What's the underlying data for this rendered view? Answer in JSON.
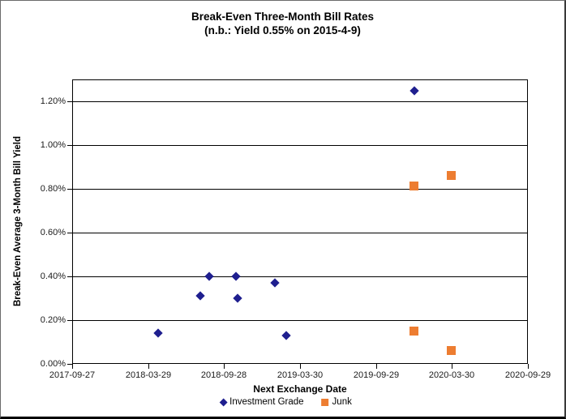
{
  "title": {
    "line1": "Break-Even Three-Month Bill Rates",
    "line2": "(n.b.: Yield 0.55% on 2015-4-9)"
  },
  "legend": {
    "items": [
      {
        "label": "Investment Grade",
        "marker": "diamond",
        "color": "#1F1F8F"
      },
      {
        "label": "Junk",
        "marker": "square",
        "color": "#ED7D31"
      }
    ]
  },
  "colors": {
    "investment_grade": "#1F1F8F",
    "junk": "#ED7D31",
    "gridline": "#000000",
    "text": "#000000"
  },
  "chart_data": {
    "type": "scatter",
    "title": "Break-Even Three-Month Bill Rates",
    "subtitle": "(n.b.: Yield 0.55% on 2015-4-9)",
    "xlabel": "Next Exchange Date",
    "ylabel": "Break-Even Average 3-Month Bill Yield",
    "x_tick_labels": [
      "2017-09-27",
      "2018-03-29",
      "2018-09-28",
      "2019-03-30",
      "2019-09-29",
      "2020-03-30",
      "2020-09-29"
    ],
    "xlim": [
      "2017-09-27",
      "2020-09-29"
    ],
    "ylim": [
      0,
      1.3
    ],
    "y_major_step": 0.2,
    "y_tick_labels": [
      "0.00%",
      "0.20%",
      "0.40%",
      "0.60%",
      "0.80%",
      "1.00%",
      "1.20%"
    ],
    "grid": "horizontal-only",
    "legend_position": "bottom",
    "series": [
      {
        "name": "Investment Grade",
        "marker": "diamond",
        "color": "#1F1F8F",
        "points": [
          {
            "x": "2018-04-23",
            "y": 0.14
          },
          {
            "x": "2018-08-01",
            "y": 0.31
          },
          {
            "x": "2018-08-24",
            "y": 0.4
          },
          {
            "x": "2018-10-26",
            "y": 0.4
          },
          {
            "x": "2018-10-31",
            "y": 0.3
          },
          {
            "x": "2019-01-28",
            "y": 0.37
          },
          {
            "x": "2019-02-25",
            "y": 0.13
          },
          {
            "x": "2019-12-30",
            "y": 1.25
          }
        ]
      },
      {
        "name": "Junk",
        "marker": "square",
        "color": "#ED7D31",
        "points": [
          {
            "x": "2019-12-30",
            "y": 0.81
          },
          {
            "x": "2020-03-30",
            "y": 0.86
          },
          {
            "x": "2019-12-30",
            "y": 0.15
          },
          {
            "x": "2020-03-30",
            "y": 0.06
          }
        ]
      }
    ]
  }
}
